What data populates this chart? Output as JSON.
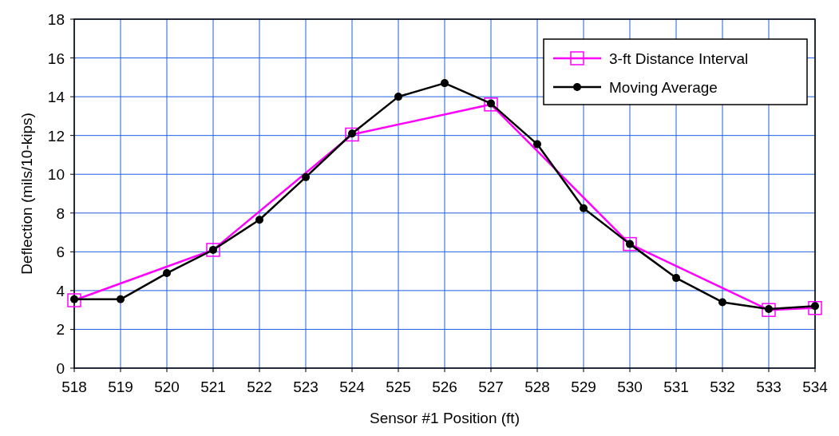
{
  "chart_data": {
    "type": "line",
    "xlabel": "Sensor #1 Position (ft)",
    "ylabel": "Deflection (mils/10-kips)",
    "xlim": [
      518,
      534
    ],
    "xticks": [
      518,
      519,
      520,
      521,
      522,
      523,
      524,
      525,
      526,
      527,
      528,
      529,
      530,
      531,
      532,
      533,
      534
    ],
    "ylim": [
      0,
      18
    ],
    "yticks": [
      0,
      2,
      4,
      6,
      8,
      10,
      12,
      14,
      16,
      18
    ],
    "grid": true,
    "legend": "top right",
    "series": [
      {
        "name": "3-ft Distance Interval",
        "color": "#ff00ff",
        "marker": "square",
        "x": [
          518,
          521,
          524,
          527,
          530,
          533,
          534
        ],
        "values": [
          3.5,
          6.1,
          12.05,
          13.6,
          6.4,
          3.0,
          3.1
        ]
      },
      {
        "name": "Moving Average",
        "color": "#000000",
        "marker": "circle",
        "x": [
          518,
          519,
          520,
          521,
          522,
          523,
          524,
          525,
          526,
          527,
          528,
          529,
          530,
          531,
          532,
          533,
          534
        ],
        "values": [
          3.55,
          3.55,
          4.9,
          6.1,
          7.65,
          9.85,
          12.1,
          14.0,
          14.7,
          13.65,
          11.55,
          8.25,
          6.4,
          4.65,
          3.4,
          3.05,
          3.2
        ]
      }
    ]
  }
}
